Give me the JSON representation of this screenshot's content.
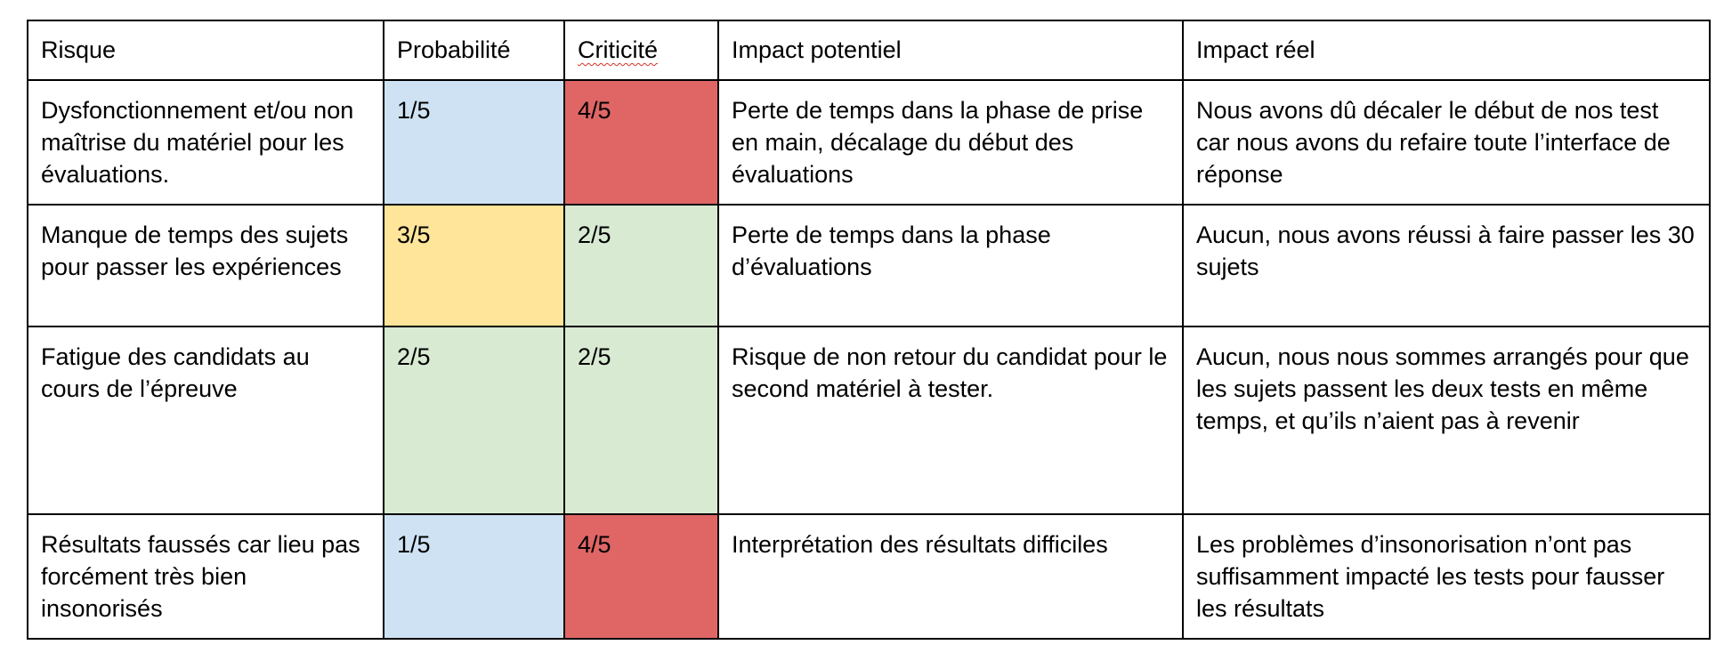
{
  "colors": {
    "blue": "#cfe2f3",
    "yellow": "#ffe599",
    "green": "#d9ead3",
    "red": "#e06666",
    "border": "#000000",
    "spellcheck_underline": "#d93025"
  },
  "table": {
    "headers": [
      "Risque",
      "Probabilité",
      "Criticité",
      "Impact potentiel",
      "Impact réel"
    ],
    "rows": [
      {
        "risque": "Dysfonctionnement et/ou non maîtrise du matériel pour les évaluations.",
        "probabilite": "1/5",
        "probabilite_color": "blue",
        "criticite": "4/5",
        "criticite_color": "red",
        "impact_potentiel": "Perte de temps dans la phase de prise en main, décalage du début des évaluations",
        "impact_reel": "Nous avons dû décaler le début de nos test car nous avons du refaire toute l’interface de réponse"
      },
      {
        "risque": "Manque de temps des sujets pour passer les expériences",
        "probabilite": "3/5",
        "probabilite_color": "yellow",
        "criticite": "2/5",
        "criticite_color": "green",
        "impact_potentiel": "Perte de temps dans la phase d’évaluations",
        "impact_reel": "Aucun, nous avons réussi à faire passer les 30 sujets"
      },
      {
        "risque": "Fatigue  des candidats au cours de l’épreuve",
        "probabilite": "2/5",
        "probabilite_color": "green",
        "criticite": "2/5",
        "criticite_color": "green",
        "impact_potentiel": "Risque de non retour du candidat pour le second matériel à tester.",
        "impact_reel": "Aucun, nous nous sommes arrangés pour que les sujets passent les deux tests en même temps, et qu’ils n’aient pas à revenir"
      },
      {
        "risque": "Résultats faussés car lieu pas forcément très bien insonorisés",
        "probabilite": "1/5",
        "probabilite_color": "blue",
        "criticite": "4/5",
        "criticite_color": "red",
        "impact_potentiel": "Interprétation des résultats difficiles",
        "impact_reel": "Les problèmes d’insonorisation n’ont pas suffisamment impacté les tests pour fausser les résultats"
      }
    ]
  }
}
